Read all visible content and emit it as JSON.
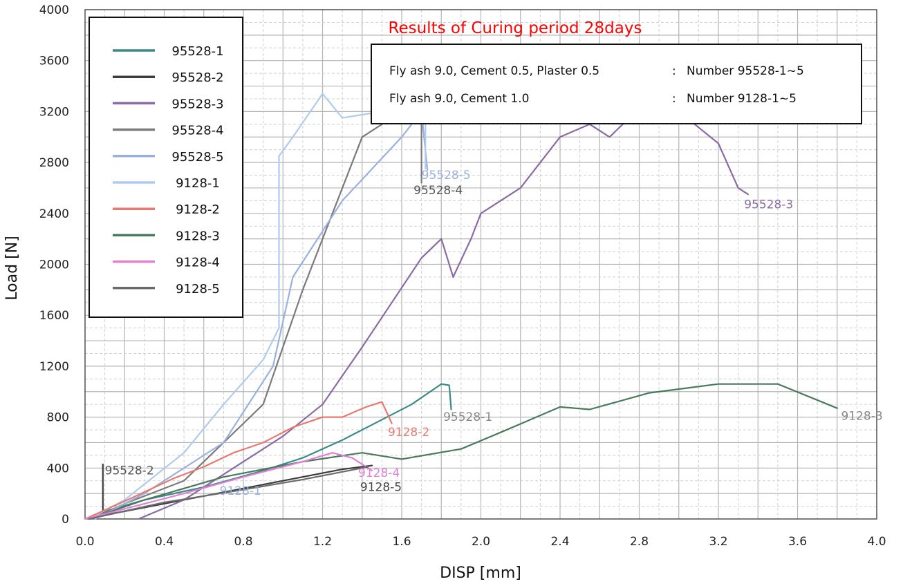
{
  "chart_data": {
    "type": "line",
    "title": "Results of Curing period 28days",
    "xlabel": "DISP [mm]",
    "ylabel": "Load [N]",
    "xlim": [
      0,
      4.0
    ],
    "ylim": [
      0,
      4000
    ],
    "x_ticks": [
      "0.0",
      "0.4",
      "0.8",
      "1.2",
      "1.6",
      "2.0",
      "2.4",
      "2.8",
      "3.2",
      "3.6",
      "4.0"
    ],
    "y_ticks": [
      "0",
      "400",
      "800",
      "1200",
      "1600",
      "2000",
      "2400",
      "2800",
      "3200",
      "3600",
      "4000"
    ],
    "grid": true,
    "legend_position": "top-left",
    "title_color": "#ff0000",
    "notes": [
      {
        "text": "Fly ash 9.0, Cement 0.5, Plaster 0.5",
        "sep": ":",
        "value": "Number 95528-1~5"
      },
      {
        "text": "Fly ash 9.0, Cement 1.0",
        "sep": ":",
        "value": "Number 9128-1~5"
      }
    ],
    "series": [
      {
        "name": "95528-1",
        "color": "#3a8a86",
        "points": [
          [
            0.02,
            0
          ],
          [
            0.1,
            60
          ],
          [
            0.3,
            150
          ],
          [
            0.6,
            250
          ],
          [
            0.9,
            380
          ],
          [
            1.1,
            480
          ],
          [
            1.3,
            620
          ],
          [
            1.5,
            780
          ],
          [
            1.65,
            900
          ],
          [
            1.8,
            1060
          ],
          [
            1.84,
            1050
          ],
          [
            1.85,
            860
          ]
        ]
      },
      {
        "name": "95528-2",
        "color": "#3c3c3c",
        "points": [
          [
            0.09,
            430
          ],
          [
            0.09,
            30
          ],
          [
            0.2,
            60
          ],
          [
            0.6,
            180
          ],
          [
            1.0,
            300
          ],
          [
            1.3,
            390
          ],
          [
            1.45,
            420
          ]
        ]
      },
      {
        "name": "95528-3",
        "color": "#8a6aa6",
        "points": [
          [
            0.27,
            0
          ],
          [
            0.5,
            150
          ],
          [
            0.8,
            450
          ],
          [
            1.0,
            650
          ],
          [
            1.2,
            900
          ],
          [
            1.4,
            1350
          ],
          [
            1.55,
            1700
          ],
          [
            1.7,
            2050
          ],
          [
            1.8,
            2200
          ],
          [
            1.86,
            1900
          ],
          [
            1.95,
            2200
          ],
          [
            2.0,
            2400
          ],
          [
            2.2,
            2600
          ],
          [
            2.4,
            3000
          ],
          [
            2.55,
            3100
          ],
          [
            2.65,
            3000
          ],
          [
            2.75,
            3150
          ],
          [
            3.0,
            3200
          ],
          [
            3.2,
            2950
          ],
          [
            3.3,
            2600
          ],
          [
            3.35,
            2550
          ]
        ]
      },
      {
        "name": "95528-4",
        "color": "#7a7a7a",
        "points": [
          [
            0.03,
            0
          ],
          [
            0.2,
            120
          ],
          [
            0.5,
            300
          ],
          [
            0.9,
            900
          ],
          [
            1.1,
            1800
          ],
          [
            1.4,
            3000
          ],
          [
            1.6,
            3200
          ],
          [
            1.7,
            3200
          ],
          [
            1.7,
            2640
          ]
        ]
      },
      {
        "name": "95528-5",
        "color": "#9ab0de",
        "points": [
          [
            0.05,
            0
          ],
          [
            0.3,
            200
          ],
          [
            0.7,
            600
          ],
          [
            0.95,
            1200
          ],
          [
            1.05,
            1900
          ],
          [
            1.3,
            2500
          ],
          [
            1.6,
            3000
          ],
          [
            1.7,
            3200
          ],
          [
            1.73,
            2740
          ]
        ]
      },
      {
        "name": "9128-1",
        "color": "#aecbee",
        "points": [
          [
            0.02,
            0
          ],
          [
            0.2,
            150
          ],
          [
            0.5,
            520
          ],
          [
            0.7,
            900
          ],
          [
            0.9,
            1250
          ],
          [
            0.98,
            1500
          ],
          [
            0.98,
            2850
          ],
          [
            1.05,
            3000
          ],
          [
            1.2,
            3340
          ],
          [
            1.3,
            3150
          ],
          [
            1.5,
            3200
          ],
          [
            1.72,
            3150
          ],
          [
            1.72,
            2750
          ]
        ]
      },
      {
        "name": "9128-2",
        "color": "#e8796e",
        "points": [
          [
            0.0,
            0
          ],
          [
            0.2,
            140
          ],
          [
            0.45,
            320
          ],
          [
            0.6,
            410
          ],
          [
            0.75,
            520
          ],
          [
            0.9,
            600
          ],
          [
            1.05,
            720
          ],
          [
            1.2,
            800
          ],
          [
            1.3,
            800
          ],
          [
            1.42,
            880
          ],
          [
            1.5,
            920
          ],
          [
            1.55,
            750
          ]
        ]
      },
      {
        "name": "9128-3",
        "color": "#4a7a5c",
        "points": [
          [
            0.02,
            0
          ],
          [
            0.3,
            150
          ],
          [
            0.7,
            330
          ],
          [
            1.1,
            450
          ],
          [
            1.4,
            520
          ],
          [
            1.6,
            470
          ],
          [
            1.9,
            550
          ],
          [
            2.1,
            680
          ],
          [
            2.4,
            880
          ],
          [
            2.55,
            860
          ],
          [
            2.85,
            990
          ],
          [
            3.2,
            1060
          ],
          [
            3.5,
            1060
          ],
          [
            3.8,
            870
          ]
        ]
      },
      {
        "name": "9128-4",
        "color": "#e27fd6",
        "points": [
          [
            0.0,
            0
          ],
          [
            0.2,
            80
          ],
          [
            0.5,
            200
          ],
          [
            0.8,
            330
          ],
          [
            1.1,
            450
          ],
          [
            1.25,
            520
          ],
          [
            1.35,
            480
          ],
          [
            1.45,
            380
          ]
        ]
      },
      {
        "name": "9128-5",
        "color": "#6b6b6b",
        "points": [
          [
            0.02,
            0
          ],
          [
            0.4,
            130
          ],
          [
            0.8,
            230
          ],
          [
            1.1,
            310
          ],
          [
            1.3,
            370
          ],
          [
            1.43,
            410
          ]
        ]
      }
    ],
    "annotations": [
      {
        "text": "95528-2",
        "x": 0.1,
        "y": 350,
        "color": "#555555"
      },
      {
        "text": "9128-1",
        "x": 0.68,
        "y": 190,
        "color": "#9ab0de"
      },
      {
        "text": "9128-5",
        "x": 1.39,
        "y": 220,
        "color": "#444444"
      },
      {
        "text": "9128-4",
        "x": 1.38,
        "y": 330,
        "color": "#e27fd6"
      },
      {
        "text": "9128-2",
        "x": 1.53,
        "y": 650,
        "color": "#e8796e"
      },
      {
        "text": "95528-1",
        "x": 1.81,
        "y": 770,
        "color": "#888888"
      },
      {
        "text": "95528-5",
        "x": 1.7,
        "y": 2670,
        "color": "#9ab0de"
      },
      {
        "text": "95528-4",
        "x": 1.66,
        "y": 2550,
        "color": "#555555"
      },
      {
        "text": "95528-3",
        "x": 3.33,
        "y": 2440,
        "color": "#8a6aa6"
      },
      {
        "text": "9128-3",
        "x": 3.82,
        "y": 780,
        "color": "#888888"
      }
    ]
  }
}
